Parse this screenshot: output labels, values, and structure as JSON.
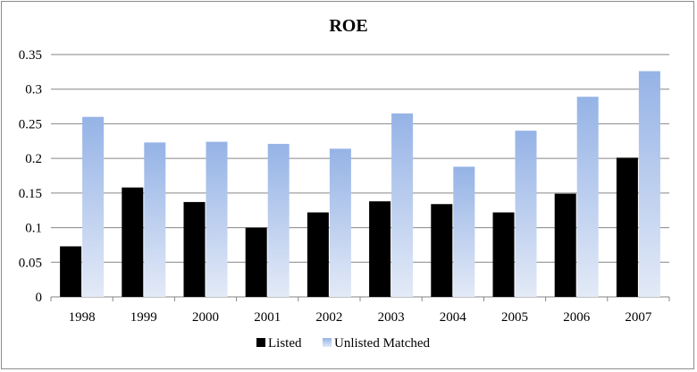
{
  "chart_data": {
    "type": "bar",
    "title": "ROE",
    "xlabel": "",
    "ylabel": "",
    "categories": [
      "1998",
      "1999",
      "2000",
      "2001",
      "2002",
      "2003",
      "2004",
      "2005",
      "2006",
      "2007"
    ],
    "series": [
      {
        "name": "Listed",
        "color": "#000000",
        "values": [
          0.073,
          0.158,
          0.137,
          0.1,
          0.122,
          0.138,
          0.134,
          0.122,
          0.149,
          0.201
        ]
      },
      {
        "name": "Unlisted Matched",
        "color": "#95b3e6",
        "values": [
          0.26,
          0.223,
          0.224,
          0.221,
          0.214,
          0.265,
          0.188,
          0.24,
          0.289,
          0.326
        ]
      }
    ],
    "ylim": [
      0,
      0.35
    ],
    "yticks": [
      "0",
      "0.05",
      "0.1",
      "0.15",
      "0.2",
      "0.25",
      "0.3",
      "0.35"
    ],
    "grid": true,
    "legend_position": "bottom"
  }
}
